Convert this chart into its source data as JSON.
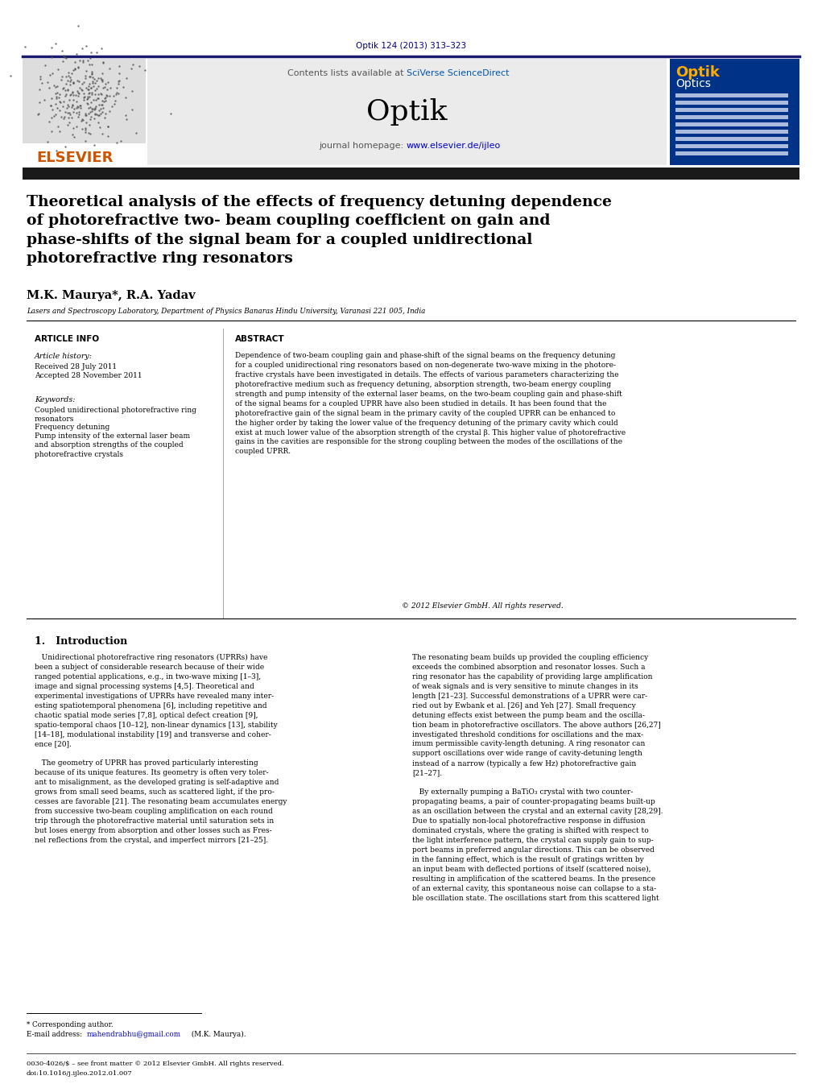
{
  "journal_ref": "Optik 124 (2013) 313–323",
  "contents_text": "Contents lists available at SciVerse ScienceDirect",
  "journal_name": "Optik",
  "journal_homepage": "journal homepage: www.elsevier.de/ijleo",
  "title": "Theoretical analysis of the effects of frequency detuning dependence\nof photorefractive two- beam coupling coefficient on gain and\nphase-shifts of the signal beam for a coupled unidirectional\nphotorefractive ring resonators",
  "authors": "M.K. Maurya*, R.A. Yadav",
  "affiliation": "Lasers and Spectroscopy Laboratory, Department of Physics Banaras Hindu University, Varanasi 221 005, India",
  "article_info_header": "ARTICLE INFO",
  "abstract_header": "ABSTRACT",
  "article_history_label": "Article history:",
  "received": "Received 28 July 2011",
  "accepted": "Accepted 28 November 2011",
  "keywords_label": "Keywords:",
  "keyword1": "Coupled unidirectional photorefractive ring\nresonators",
  "keyword2": "Frequency detuning",
  "keyword3": "Pump intensity of the external laser beam\nand absorption strengths of the coupled\nphotorefractive crystals",
  "abstract_text": "Dependence of two-beam coupling gain and phase-shift of the signal beams on the frequency detuning\nfor a coupled unidirectional ring resonators based on non-degenerate two-wave mixing in the photore-\nfractive crystals have been investigated in details. The effects of various parameters characterizing the\nphotorefractive medium such as frequency detuning, absorption strength, two-beam energy coupling\nstrength and pump intensity of the external laser beams, on the two-beam coupling gain and phase-shift\nof the signal beams for a coupled UPRR have also been studied in details. It has been found that the\nphotorefractive gain of the signal beam in the primary cavity of the coupled UPRR can be enhanced to\nthe higher order by taking the lower value of the frequency detuning of the primary cavity which could\nexist at much lower value of the absorption strength of the crystal β. This higher value of photorefractive\ngains in the cavities are responsible for the strong coupling between the modes of the oscillations of the\ncoupled UPRR.",
  "copyright": "© 2012 Elsevier GmbH. All rights reserved.",
  "section1_title": "1.   Introduction",
  "intro_col1": "   Unidirectional photorefractive ring resonators (UPRRs) have\nbeen a subject of considerable research because of their wide\nranged potential applications, e.g., in two-wave mixing [1–3],\nimage and signal processing systems [4,5]. Theoretical and\nexperimental investigations of UPRRs have revealed many inter-\nesting spatiotemporal phenomena [6], including repetitive and\nchaotic spatial mode series [7,8], optical defect creation [9],\nspatio-temporal chaos [10–12], non-linear dynamics [13], stability\n[14–18], modulational instability [19] and transverse and coher-\nence [20].\n\n   The geometry of UPRR has proved particularly interesting\nbecause of its unique features. Its geometry is often very toler-\nant to misalignment, as the developed grating is self-adaptive and\ngrows from small seed beams, such as scattered light, if the pro-\ncesses are favorable [21]. The resonating beam accumulates energy\nfrom successive two-beam coupling amplification on each round\ntrip through the photorefractive material until saturation sets in\nbut loses energy from absorption and other losses such as Fres-\nnel reflections from the crystal, and imperfect mirrors [21–25].",
  "intro_col2": "The resonating beam builds up provided the coupling efficiency\nexceeds the combined absorption and resonator losses. Such a\nring resonator has the capability of providing large amplification\nof weak signals and is very sensitive to minute changes in its\nlength [21–23]. Successful demonstrations of a UPRR were car-\nried out by Ewbank et al. [26] and Yeh [27]. Small frequency\ndetuning effects exist between the pump beam and the oscilla-\ntion beam in photorefractive oscillators. The above authors [26,27]\ninvestigated threshold conditions for oscillations and the max-\nimum permissible cavity-length detuning. A ring resonator can\nsupport oscillations over wide range of cavity-detuning length\ninstead of a narrow (typically a few Hz) photorefractive gain\n[21–27].\n\n   By externally pumping a BaTiO₃ crystal with two counter-\npropagating beams, a pair of counter-propagating beams built-up\nas an oscillation between the crystal and an external cavity [28,29].\nDue to spatially non-local photorefractive response in diffusion\ndominated crystals, where the grating is shifted with respect to\nthe light interference pattern, the crystal can supply gain to sup-\nport beams in preferred angular directions. This can be observed\nin the fanning effect, which is the result of gratings written by\nan input beam with deflected portions of itself (scattered noise),\nresulting in amplification of the scattered beams. In the presence\nof an external cavity, this spontaneous noise can collapse to a sta-\nble oscillation state. The oscillations start from this scattered light",
  "footnote_star": "* Corresponding author.",
  "footnote_email_label": "E-mail address: ",
  "footnote_email_link": "mahendrabhu@gmail.com",
  "footnote_email_rest": " (M.K. Maurya).",
  "footer_issn": "0030-4026/$ – see front matter © 2012 Elsevier GmbH. All rights reserved.",
  "footer_doi": "doi:10.1016/j.ijleo.2012.01.007",
  "bg_color": "#ffffff",
  "header_bg": "#ebebeb",
  "dark_bar_color": "#1a1a1a",
  "blue_color": "#000080",
  "link_color": "#0000cc",
  "orange_color": "#cc5500",
  "title_fontsize": 13.5,
  "body_fontsize": 7.5,
  "small_fontsize": 6.5,
  "header_fontsize": 8.5
}
